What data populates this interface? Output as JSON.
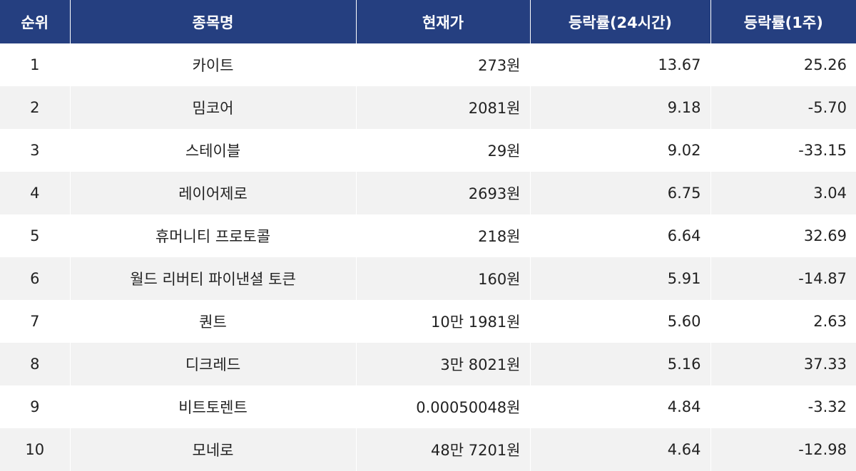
{
  "table": {
    "headers": [
      "순위",
      "종목명",
      "현재가",
      "등락률(24시간)",
      "등락률(1주)"
    ],
    "rows": [
      {
        "rank": "1",
        "name": "카이트",
        "price": "273원",
        "change_24h": "13.67",
        "change_1w": "25.26"
      },
      {
        "rank": "2",
        "name": "밈코어",
        "price": "2081원",
        "change_24h": "9.18",
        "change_1w": "-5.70"
      },
      {
        "rank": "3",
        "name": "스테이블",
        "price": "29원",
        "change_24h": "9.02",
        "change_1w": "-33.15"
      },
      {
        "rank": "4",
        "name": "레이어제로",
        "price": "2693원",
        "change_24h": "6.75",
        "change_1w": "3.04"
      },
      {
        "rank": "5",
        "name": "휴머니티 프로토콜",
        "price": "218원",
        "change_24h": "6.64",
        "change_1w": "32.69"
      },
      {
        "rank": "6",
        "name": "월드 리버티 파이낸셜 토큰",
        "price": "160원",
        "change_24h": "5.91",
        "change_1w": "-14.87"
      },
      {
        "rank": "7",
        "name": "퀀트",
        "price": "10만 1981원",
        "change_24h": "5.60",
        "change_1w": "2.63"
      },
      {
        "rank": "8",
        "name": "디크레드",
        "price": "3만 8021원",
        "change_24h": "5.16",
        "change_1w": "37.33"
      },
      {
        "rank": "9",
        "name": "비트토렌트",
        "price": "0.00050048원",
        "change_24h": "4.84",
        "change_1w": "-3.32"
      },
      {
        "rank": "10",
        "name": "모네로",
        "price": "48만 7201원",
        "change_24h": "4.64",
        "change_1w": "-12.98"
      }
    ]
  }
}
